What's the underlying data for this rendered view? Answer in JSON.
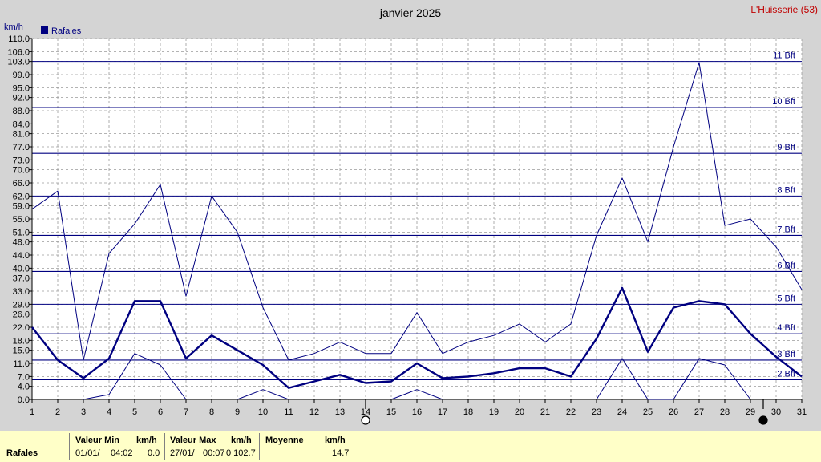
{
  "header": {
    "title": "janvier 2025",
    "station": "L'Huisserie (53)"
  },
  "chart_data": {
    "type": "line",
    "title": "janvier 2025",
    "ylabel": "km/h",
    "ylim": [
      0,
      110
    ],
    "y_ticks": [
      "0.0",
      "4.0",
      "7.0",
      "11.0",
      "15.0",
      "18.0",
      "22.0",
      "26.0",
      "29.0",
      "33.0",
      "37.0",
      "40.0",
      "44.0",
      "48.0",
      "51.0",
      "55.0",
      "59.0",
      "62.0",
      "66.0",
      "70.0",
      "73.0",
      "77.0",
      "81.0",
      "84.0",
      "88.0",
      "92.0",
      "95.0",
      "99.0",
      "103.0",
      "106.0",
      "110.0"
    ],
    "x": [
      1,
      2,
      3,
      4,
      5,
      6,
      7,
      8,
      9,
      10,
      11,
      12,
      13,
      14,
      15,
      16,
      17,
      18,
      19,
      20,
      21,
      22,
      23,
      24,
      25,
      26,
      27,
      28,
      29,
      30,
      31
    ],
    "legend": {
      "label": "Rafales",
      "placement": "top-left"
    },
    "series": [
      {
        "name": "Rafales",
        "kind": "mean",
        "color": "#000080",
        "values": [
          22,
          12,
          6.5,
          12.5,
          30,
          30,
          12.5,
          19.5,
          15,
          10.5,
          3.5,
          5.5,
          7.5,
          5,
          5.5,
          11,
          6.5,
          7,
          8,
          9.5,
          9.5,
          7,
          18.5,
          34,
          14.5,
          28,
          30,
          29,
          20,
          13,
          7
        ]
      },
      {
        "kind": "max",
        "color": "#000080",
        "values": [
          58,
          63.5,
          12,
          44.5,
          53.5,
          65.5,
          31.5,
          62,
          51,
          28,
          12,
          14,
          17.5,
          14,
          14,
          26.5,
          14,
          17.5,
          19.5,
          23,
          17.5,
          23,
          50,
          67.5,
          48,
          77,
          102.7,
          53,
          55,
          46.5,
          33.5
        ]
      },
      {
        "kind": "min",
        "color": "#000080",
        "values": [
          null,
          null,
          0,
          1.5,
          14,
          10.5,
          0,
          null,
          0,
          3,
          0,
          null,
          null,
          null,
          0,
          3,
          0,
          null,
          null,
          null,
          null,
          null,
          0,
          12.5,
          0,
          0,
          12.5,
          10.5,
          0,
          null,
          null
        ]
      }
    ],
    "beaufort": [
      {
        "label": "2 Bft",
        "value": 6
      },
      {
        "label": "3 Bft",
        "value": 12
      },
      {
        "label": "4 Bft",
        "value": 20
      },
      {
        "label": "5 Bft",
        "value": 29
      },
      {
        "label": "6 Bft",
        "value": 39
      },
      {
        "label": "7 Bft",
        "value": 50
      },
      {
        "label": "8 Bft",
        "value": 62
      },
      {
        "label": "9 Bft",
        "value": 75
      },
      {
        "label": "10 Bft",
        "value": 89
      },
      {
        "label": "11 Bft",
        "value": 103
      }
    ],
    "moon_phases": [
      {
        "day": 14,
        "phase": "full"
      },
      {
        "day": 29.5,
        "phase": "new"
      }
    ],
    "grid": true
  },
  "footer": {
    "row_label": "Rafales",
    "min_header": "Valeur Min",
    "min_unit": "km/h",
    "min_date": "01/01/",
    "min_time": "04:02",
    "min_value": "0.0",
    "max_header": "Valeur Max",
    "max_unit": "km/h",
    "max_date": "27/01/",
    "max_time": "00:07",
    "max_value": "0 102.7",
    "avg_header": "Moyenne",
    "avg_unit": "km/h",
    "avg_value": "14.7"
  }
}
